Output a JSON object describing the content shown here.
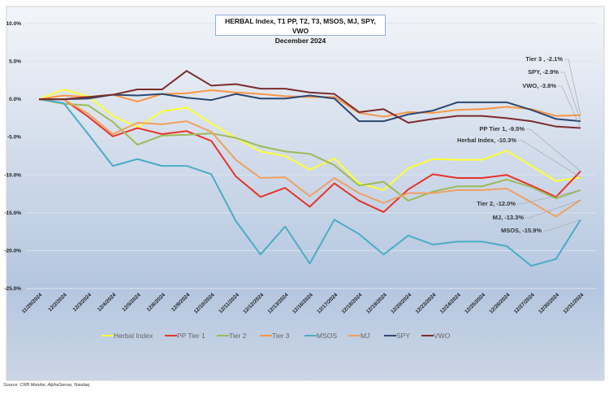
{
  "chart_data": {
    "type": "line",
    "title": "HERBAL Index, T1 PP, T2, T3, MSOS, MJ, SPY, VWO",
    "subtitle": "December 2024",
    "source": "Source: CRB Monitor, AlphaSense, Nasdaq",
    "ylim": [
      -25,
      10
    ],
    "yticks": [
      "10.0%",
      "5.0%",
      "0.0%",
      "-5.0%",
      "-10.0%",
      "-15.0%",
      "-20.0%",
      "-25.0%"
    ],
    "grid": true,
    "legend_position": "bottom",
    "x": [
      "11/29/2024",
      "12/2/2024",
      "12/3/2024",
      "12/4/2024",
      "12/5/2024",
      "12/6/2024",
      "12/9/2024",
      "12/10/2024",
      "12/11/2024",
      "12/12/2024",
      "12/13/2024",
      "12/16/2024",
      "12/17/2024",
      "12/18/2024",
      "12/19/2024",
      "12/20/2024",
      "12/23/2024",
      "12/24/2024",
      "12/25/2024",
      "12/26/2024",
      "12/27/2024",
      "12/30/2024",
      "12/31/2024"
    ],
    "series": [
      {
        "name": "Herbal Index",
        "color": "#ffff33",
        "label": "Herbal Index, -10.3%",
        "values": [
          0,
          1.3,
          0.4,
          -2.2,
          -3.7,
          -1.6,
          -1.1,
          -3.2,
          -5.1,
          -6.9,
          -7.5,
          -9.3,
          -7.8,
          -11.1,
          -12.0,
          -9.1,
          -7.9,
          -8.0,
          -8.0,
          -6.8,
          -8.8,
          -10.8,
          -10.3
        ]
      },
      {
        "name": "PP Tier 1",
        "color": "#e8332a",
        "label": "PP Tier 1, -9.5%",
        "values": [
          0,
          0,
          -2.3,
          -4.9,
          -3.8,
          -4.6,
          -4.2,
          -5.5,
          -10.2,
          -12.9,
          -11.7,
          -14.2,
          -11.1,
          -13.4,
          -14.9,
          -11.9,
          -9.9,
          -10.4,
          -10.4,
          -10.0,
          -11.4,
          -12.9,
          -9.5
        ]
      },
      {
        "name": "Tier 2",
        "color": "#9bbb59",
        "label": "Tier 2, -12.0%",
        "values": [
          0,
          -0.6,
          -0.8,
          -3.0,
          -6.0,
          -4.8,
          -4.7,
          -4.5,
          -5.1,
          -6.2,
          -6.9,
          -7.2,
          -8.7,
          -11.4,
          -10.9,
          -13.4,
          -12.2,
          -11.5,
          -11.5,
          -10.6,
          -11.6,
          -13.1,
          -12.0
        ]
      },
      {
        "name": "Tier 3",
        "color": "#f79646",
        "label": "Tier 3 , -2.1%",
        "values": [
          0,
          0.5,
          0.3,
          0.6,
          -0.3,
          0.7,
          0.8,
          1.2,
          0.9,
          0.7,
          0.4,
          0.3,
          0.3,
          -1.8,
          -2.3,
          -1.7,
          -1.8,
          -1.4,
          -1.3,
          -1.0,
          -1.3,
          -2.2,
          -2.1
        ]
      },
      {
        "name": "MSOS",
        "color": "#4bacc6",
        "label": "MSOS, -15.9%",
        "values": [
          0,
          -0.5,
          -4.6,
          -8.8,
          -7.9,
          -8.8,
          -8.8,
          -9.9,
          -16.1,
          -20.5,
          -16.8,
          -21.7,
          -15.9,
          -17.8,
          -20.5,
          -18.0,
          -19.2,
          -18.8,
          -18.8,
          -19.4,
          -22.0,
          -21.1,
          -15.9
        ]
      },
      {
        "name": "MJ",
        "color": "#f0a060",
        "label": "MJ, -13.3%",
        "values": [
          0,
          0,
          -1.9,
          -4.6,
          -3.1,
          -3.3,
          -2.9,
          -4.3,
          -8.0,
          -10.4,
          -10.3,
          -12.8,
          -10.4,
          -12.4,
          -13.7,
          -12.4,
          -12.4,
          -12.0,
          -12.0,
          -11.8,
          -13.6,
          -15.5,
          -13.3
        ]
      },
      {
        "name": "SPY",
        "color": "#2c4770",
        "label": "SPY, -2.9%",
        "values": [
          0,
          0,
          0.1,
          0.6,
          0.5,
          0.7,
          0.2,
          -0.1,
          0.7,
          0.1,
          0.1,
          0.5,
          0.1,
          -2.9,
          -2.9,
          -2.0,
          -1.5,
          -0.4,
          -0.4,
          -0.4,
          -1.4,
          -2.6,
          -2.9
        ]
      },
      {
        "name": "VWO",
        "color": "#7b2c2c",
        "label": "VWO, -3.8%",
        "values": [
          0,
          0,
          0.3,
          0.6,
          1.3,
          1.3,
          3.75,
          1.8,
          2.0,
          1.4,
          1.4,
          0.9,
          0.7,
          -1.7,
          -1.3,
          -3.1,
          -2.6,
          -2.2,
          -2.2,
          -2.5,
          -2.9,
          -3.6,
          -3.8
        ]
      }
    ]
  }
}
